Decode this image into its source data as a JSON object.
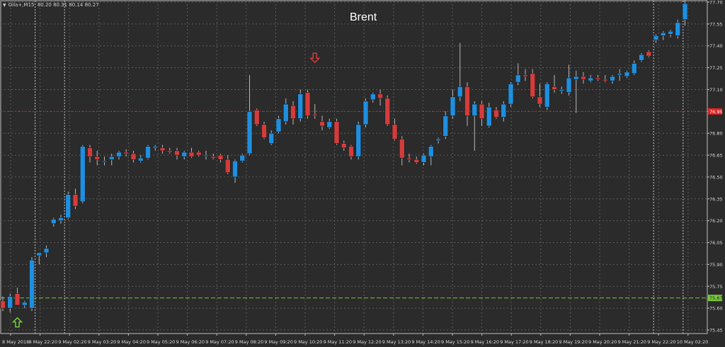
{
  "header": {
    "symbol_label": "Oilа+,M15",
    "ohlc_text": "80.20 80.31 80.14 80.27"
  },
  "colors": {
    "background": "#2b2b2b",
    "grid": "#5a5a5a",
    "axis_text": "#d8d8d8",
    "bull": "#1e8fe0",
    "bear": "#d43c3c",
    "wick": "#b8b8b8",
    "red_level": "#e02020",
    "green_level": "#78c83c",
    "buy_arrow": "#78d83c",
    "sell_arrow": "#e03c3c"
  },
  "chart_data": {
    "type": "candlestick",
    "title": "Brent",
    "ylim": [
      75.4,
      77.72
    ],
    "y_ticks": [
      "77.70",
      "77.55",
      "77.40",
      "77.25",
      "77.10",
      "76.95",
      "76.80",
      "76.65",
      "76.50",
      "76.35",
      "76.20",
      "76.05",
      "75.90",
      "75.75",
      "75.60",
      "75.45"
    ],
    "x_ticks": [
      "8 May 2018",
      "8 May 22:20",
      "9 May 02:20",
      "9 May 03:20",
      "9 May 04:20",
      "9 May 05:20",
      "9 May 06:20",
      "9 May 07:20",
      "9 May 08:20",
      "9 May 09:20",
      "9 May 10:20",
      "9 May 11:20",
      "9 May 12:20",
      "9 May 13:20",
      "9 May 14:20",
      "9 May 15:20",
      "9 May 16:20",
      "9 May 17:20",
      "9 May 18:20",
      "9 May 19:20",
      "9 May 20:20",
      "9 May 21:20",
      "9 May 22:20",
      "10 May 02:20"
    ],
    "session_breaks": [
      "8 May 22:20",
      "9 May 02:20",
      "9 May 22:20",
      "10 May 02:20"
    ],
    "levels": [
      {
        "price": 76.95,
        "label": "76.95",
        "color_key": "red_level",
        "style": "dotted"
      },
      {
        "price": 75.67,
        "label": "75.67",
        "color_key": "green_level",
        "style": "dashed"
      }
    ],
    "signals": [
      {
        "bar": 2,
        "type": "buy",
        "price": 75.5
      },
      {
        "bar": 43,
        "type": "sell",
        "price": 77.32
      }
    ],
    "candles": [
      [
        75.65,
        75.68,
        75.58,
        75.6
      ],
      [
        75.6,
        75.7,
        75.57,
        75.68
      ],
      [
        75.7,
        75.74,
        75.62,
        75.62
      ],
      [
        75.62,
        75.65,
        75.6,
        75.64
      ],
      [
        75.6,
        75.95,
        75.58,
        75.93
      ],
      [
        75.96,
        75.98,
        75.9,
        75.98
      ],
      [
        75.98,
        76.03,
        75.95,
        76.01
      ],
      [
        76.18,
        76.22,
        76.16,
        76.21
      ],
      [
        76.2,
        76.24,
        76.18,
        76.22
      ],
      [
        76.22,
        76.4,
        76.21,
        76.38
      ],
      [
        76.38,
        76.42,
        76.28,
        76.3
      ],
      [
        76.33,
        76.72,
        76.32,
        76.71
      ],
      [
        76.7,
        76.72,
        76.6,
        76.64
      ],
      [
        76.64,
        76.68,
        76.58,
        76.62
      ],
      [
        76.61,
        76.64,
        76.58,
        76.61
      ],
      [
        76.62,
        76.66,
        76.58,
        76.64
      ],
      [
        76.64,
        76.68,
        76.62,
        76.67
      ],
      [
        76.67,
        76.69,
        76.64,
        76.66
      ],
      [
        76.66,
        76.68,
        76.6,
        76.62
      ],
      [
        76.61,
        76.65,
        76.6,
        76.63
      ],
      [
        76.63,
        76.72,
        76.62,
        76.71
      ],
      [
        76.7,
        76.72,
        76.68,
        76.71
      ],
      [
        76.7,
        76.72,
        76.66,
        76.68
      ],
      [
        76.68,
        76.7,
        76.66,
        76.67
      ],
      [
        76.68,
        76.7,
        76.62,
        76.65
      ],
      [
        76.64,
        76.68,
        76.62,
        76.67
      ],
      [
        76.67,
        76.7,
        76.63,
        76.64
      ],
      [
        76.67,
        76.68,
        76.64,
        76.65
      ],
      [
        76.65,
        76.68,
        76.62,
        76.65
      ],
      [
        76.64,
        76.66,
        76.62,
        76.63
      ],
      [
        76.65,
        76.66,
        76.6,
        76.62
      ],
      [
        76.62,
        76.65,
        76.52,
        76.53
      ],
      [
        76.5,
        76.62,
        76.46,
        76.61
      ],
      [
        76.61,
        76.66,
        76.6,
        76.65
      ],
      [
        76.66,
        77.2,
        76.65,
        76.95
      ],
      [
        76.96,
        76.97,
        76.85,
        76.86
      ],
      [
        76.86,
        76.88,
        76.76,
        76.77
      ],
      [
        76.73,
        76.82,
        76.72,
        76.8
      ],
      [
        76.81,
        76.92,
        76.8,
        76.9
      ],
      [
        76.88,
        77.04,
        76.86,
        77.0
      ],
      [
        76.99,
        77.02,
        76.86,
        76.9
      ],
      [
        76.9,
        77.1,
        76.88,
        77.07
      ],
      [
        77.08,
        77.1,
        76.9,
        76.92
      ],
      [
        76.93,
        77.0,
        76.9,
        76.92
      ],
      [
        76.88,
        76.92,
        76.82,
        76.85
      ],
      [
        76.84,
        76.9,
        76.83,
        76.88
      ],
      [
        76.88,
        76.9,
        76.72,
        76.73
      ],
      [
        76.73,
        76.75,
        76.68,
        76.7
      ],
      [
        76.71,
        76.72,
        76.62,
        76.64
      ],
      [
        76.64,
        76.88,
        76.62,
        76.86
      ],
      [
        76.86,
        77.04,
        76.84,
        77.02
      ],
      [
        77.03,
        77.08,
        77.01,
        77.07
      ],
      [
        77.07,
        77.1,
        76.99,
        77.04
      ],
      [
        77.04,
        77.06,
        76.85,
        76.86
      ],
      [
        76.86,
        76.9,
        76.75,
        76.76
      ],
      [
        76.76,
        76.78,
        76.58,
        76.63
      ],
      [
        76.63,
        76.66,
        76.6,
        76.62
      ],
      [
        76.62,
        76.64,
        76.59,
        76.6
      ],
      [
        76.6,
        76.66,
        76.58,
        76.65
      ],
      [
        76.64,
        76.72,
        76.58,
        76.71
      ],
      [
        76.75,
        76.77,
        76.73,
        76.76
      ],
      [
        76.78,
        76.95,
        76.76,
        76.92
      ],
      [
        76.92,
        77.1,
        76.9,
        77.05
      ],
      [
        77.05,
        77.42,
        77.02,
        77.12
      ],
      [
        77.12,
        77.15,
        76.85,
        76.92
      ],
      [
        76.92,
        77.02,
        76.68,
        77.0
      ],
      [
        77.0,
        77.02,
        76.85,
        76.9
      ],
      [
        76.85,
        77.01,
        76.84,
        76.98
      ],
      [
        76.96,
        76.98,
        76.9,
        76.91
      ],
      [
        76.91,
        77.02,
        76.88,
        77.0
      ],
      [
        77.0,
        77.15,
        76.98,
        77.14
      ],
      [
        77.15,
        77.28,
        77.13,
        77.2
      ],
      [
        77.2,
        77.24,
        77.16,
        77.19
      ],
      [
        77.21,
        77.24,
        77.04,
        77.05
      ],
      [
        77.05,
        77.14,
        76.98,
        77.0
      ],
      [
        76.98,
        77.15,
        76.96,
        77.14
      ],
      [
        77.12,
        77.2,
        77.08,
        77.1
      ],
      [
        77.09,
        77.12,
        77.07,
        77.1
      ],
      [
        77.08,
        77.27,
        77.06,
        77.18
      ],
      [
        77.17,
        77.23,
        76.94,
        77.19
      ],
      [
        77.19,
        77.22,
        77.14,
        77.17
      ],
      [
        77.16,
        77.2,
        77.15,
        77.18
      ],
      [
        77.18,
        77.2,
        77.16,
        77.17
      ],
      [
        77.17,
        77.2,
        77.15,
        77.16
      ],
      [
        77.16,
        77.2,
        77.14,
        77.19
      ],
      [
        77.2,
        77.24,
        77.16,
        77.21
      ],
      [
        77.19,
        77.23,
        77.18,
        77.22
      ],
      [
        77.21,
        77.3,
        77.2,
        77.28
      ],
      [
        77.3,
        77.35,
        77.29,
        77.34
      ],
      [
        77.36,
        77.37,
        77.32,
        77.33
      ],
      [
        77.44,
        77.48,
        77.42,
        77.47
      ],
      [
        77.47,
        77.5,
        77.44,
        77.49
      ],
      [
        77.48,
        77.51,
        77.46,
        77.5
      ],
      [
        77.47,
        77.58,
        77.45,
        77.56
      ],
      [
        77.58,
        77.72,
        77.54,
        77.69
      ]
    ]
  }
}
